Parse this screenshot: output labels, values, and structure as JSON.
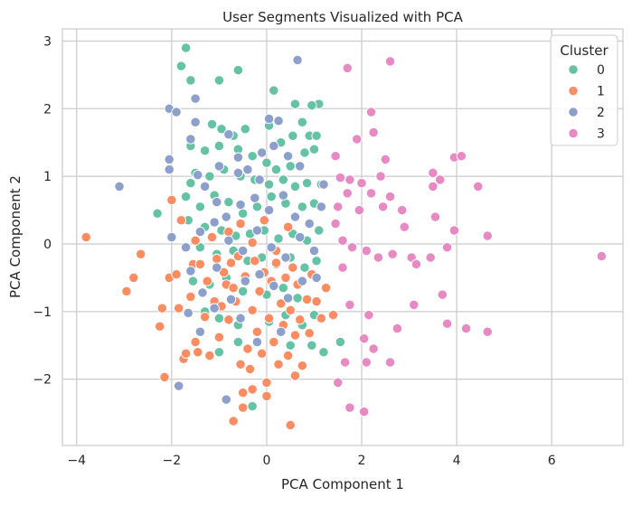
{
  "chart_data": {
    "type": "scatter",
    "title": "User Segments Visualized with PCA",
    "xlabel": "PCA Component 1",
    "ylabel": "PCA Component 2",
    "xlim": [
      -4.3,
      7.5
    ],
    "ylim": [
      -2.98,
      3.18
    ],
    "xticks": [
      -4,
      -2,
      0,
      2,
      4,
      6
    ],
    "yticks": [
      -2,
      -1,
      0,
      1,
      2,
      3
    ],
    "grid": true,
    "legend": {
      "title": "Cluster",
      "placement": "top-right"
    },
    "series": [
      {
        "name": "0",
        "color": "#66c2a5",
        "points": [
          [
            -1.7,
            2.9
          ],
          [
            -1.8,
            2.63
          ],
          [
            -1.6,
            2.42
          ],
          [
            -1.0,
            2.42
          ],
          [
            -0.6,
            2.57
          ],
          [
            0.15,
            2.27
          ],
          [
            0.6,
            2.07
          ],
          [
            1.1,
            2.07
          ],
          [
            0.95,
            2.05
          ],
          [
            -1.15,
            1.77
          ],
          [
            -0.95,
            1.7
          ],
          [
            -0.7,
            1.6
          ],
          [
            -0.45,
            1.7
          ],
          [
            0.05,
            1.75
          ],
          [
            0.3,
            1.5
          ],
          [
            0.55,
            1.6
          ],
          [
            0.75,
            1.8
          ],
          [
            0.9,
            1.6
          ],
          [
            1.05,
            1.6
          ],
          [
            -1.6,
            1.45
          ],
          [
            -1.3,
            1.38
          ],
          [
            -1.0,
            1.45
          ],
          [
            -0.6,
            1.4
          ],
          [
            -0.3,
            1.3
          ],
          [
            0.0,
            1.2
          ],
          [
            0.2,
            1.1
          ],
          [
            0.5,
            1.15
          ],
          [
            0.8,
            1.35
          ],
          [
            1.0,
            1.4
          ],
          [
            -1.5,
            1.05
          ],
          [
            -1.2,
            1.0
          ],
          [
            -0.9,
            1.1
          ],
          [
            -0.55,
            1.0
          ],
          [
            -0.25,
            0.95
          ],
          [
            0.05,
            0.88
          ],
          [
            0.35,
            0.95
          ],
          [
            0.6,
            0.85
          ],
          [
            0.85,
            0.9
          ],
          [
            1.15,
            0.88
          ],
          [
            -2.3,
            0.45
          ],
          [
            -1.6,
            0.9
          ],
          [
            -1.7,
            0.7
          ],
          [
            -1.4,
            0.55
          ],
          [
            -1.1,
            0.72
          ],
          [
            -0.8,
            0.62
          ],
          [
            -0.5,
            0.45
          ],
          [
            -0.2,
            0.55
          ],
          [
            0.1,
            0.7
          ],
          [
            0.4,
            0.6
          ],
          [
            0.75,
            0.55
          ],
          [
            1.0,
            0.6
          ],
          [
            -1.65,
            0.35
          ],
          [
            -1.3,
            0.25
          ],
          [
            -0.95,
            0.2
          ],
          [
            -0.65,
            0.12
          ],
          [
            -0.35,
            0.15
          ],
          [
            -0.05,
            0.2
          ],
          [
            0.25,
            0.08
          ],
          [
            0.55,
            0.15
          ],
          [
            0.85,
            0.05
          ],
          [
            1.1,
            0.2
          ],
          [
            -1.4,
            -0.05
          ],
          [
            -1.05,
            -0.15
          ],
          [
            -0.7,
            -0.1
          ],
          [
            -0.4,
            -0.25
          ],
          [
            -0.1,
            -0.2
          ],
          [
            0.2,
            -0.3
          ],
          [
            0.5,
            -0.2
          ],
          [
            0.8,
            -0.35
          ],
          [
            1.05,
            -0.25
          ],
          [
            -1.55,
            -0.55
          ],
          [
            -1.2,
            -0.6
          ],
          [
            -0.85,
            -0.5
          ],
          [
            -0.5,
            -0.7
          ],
          [
            0.0,
            -0.75
          ],
          [
            0.35,
            -0.65
          ],
          [
            0.65,
            -0.8
          ],
          [
            -1.3,
            -1.0
          ],
          [
            -1.0,
            -1.1
          ],
          [
            -0.6,
            -1.2
          ],
          [
            0.05,
            -1.15
          ],
          [
            0.4,
            -1.05
          ],
          [
            0.75,
            -1.2
          ],
          [
            1.0,
            -1.05
          ],
          [
            -1.0,
            -1.6
          ],
          [
            -0.6,
            -1.45
          ],
          [
            0.5,
            -1.5
          ],
          [
            0.95,
            -1.5
          ],
          [
            1.2,
            -1.6
          ],
          [
            1.55,
            -1.45
          ],
          [
            -0.85,
            -2.3
          ],
          [
            -0.3,
            -2.4
          ]
        ]
      },
      {
        "name": "1",
        "color": "#fc8d62",
        "points": [
          [
            -3.8,
            0.1
          ],
          [
            -2.95,
            -0.7
          ],
          [
            -2.8,
            -0.5
          ],
          [
            -2.65,
            -0.15
          ],
          [
            -2.25,
            -1.22
          ],
          [
            -2.2,
            -0.95
          ],
          [
            -2.15,
            -1.97
          ],
          [
            -2.05,
            -0.5
          ],
          [
            -2.0,
            0.65
          ],
          [
            -1.9,
            -0.45
          ],
          [
            -1.85,
            -0.95
          ],
          [
            -1.75,
            -1.7
          ],
          [
            -1.7,
            -1.62
          ],
          [
            -1.6,
            -0.78
          ],
          [
            -1.55,
            -0.3
          ],
          [
            -1.5,
            -1.45
          ],
          [
            -1.45,
            -1.6
          ],
          [
            -1.4,
            -0.3
          ],
          [
            -1.3,
            -1.08
          ],
          [
            -1.25,
            -0.55
          ],
          [
            -1.2,
            -1.65
          ],
          [
            -1.1,
            -0.85
          ],
          [
            -1.05,
            -0.22
          ],
          [
            -1.0,
            -1.38
          ],
          [
            -0.95,
            -0.92
          ],
          [
            -0.9,
            -0.42
          ],
          [
            -0.85,
            -0.6
          ],
          [
            -0.8,
            -1.12
          ],
          [
            -0.75,
            -0.28
          ],
          [
            -0.7,
            -0.65
          ],
          [
            -0.65,
            -0.85
          ],
          [
            -0.6,
            -0.18
          ],
          [
            -0.55,
            -1.78
          ],
          [
            -0.5,
            -2.2
          ],
          [
            -0.45,
            -0.48
          ],
          [
            -0.4,
            -1.55
          ],
          [
            -0.35,
            -1.85
          ],
          [
            -0.3,
            -0.98
          ],
          [
            -0.25,
            -0.25
          ],
          [
            -0.2,
            -1.3
          ],
          [
            -0.15,
            -0.7
          ],
          [
            -0.1,
            -1.62
          ],
          [
            -0.05,
            -0.42
          ],
          [
            0.0,
            -2.05
          ],
          [
            0.05,
            -1.1
          ],
          [
            0.1,
            -0.55
          ],
          [
            0.15,
            -1.45
          ],
          [
            0.2,
            -0.28
          ],
          [
            0.25,
            -1.78
          ],
          [
            0.3,
            -0.88
          ],
          [
            0.35,
            -1.2
          ],
          [
            0.4,
            -0.5
          ],
          [
            0.45,
            -1.65
          ],
          [
            0.5,
            -0.98
          ],
          [
            0.55,
            -0.35
          ],
          [
            0.6,
            -1.35
          ],
          [
            0.65,
            -0.6
          ],
          [
            0.7,
            -1.12
          ],
          [
            0.75,
            -1.8
          ],
          [
            0.85,
            -0.82
          ],
          [
            0.9,
            -1.32
          ],
          [
            0.95,
            -0.45
          ],
          [
            1.05,
            -0.85
          ],
          [
            1.15,
            -1.1
          ],
          [
            1.25,
            -0.65
          ],
          [
            1.4,
            -1.05
          ],
          [
            -1.8,
            0.35
          ],
          [
            -1.5,
            0.05
          ],
          [
            -1.15,
            0.1
          ],
          [
            -0.8,
            0.18
          ],
          [
            -0.55,
            0.3
          ],
          [
            -0.3,
            0.02
          ],
          [
            -0.05,
            0.35
          ],
          [
            0.2,
            -0.1
          ],
          [
            0.45,
            0.25
          ],
          [
            -0.7,
            -2.62
          ],
          [
            -0.5,
            -2.42
          ],
          [
            0.0,
            -2.25
          ],
          [
            0.5,
            -2.68
          ],
          [
            0.6,
            -1.95
          ],
          [
            -0.3,
            -2.15
          ]
        ]
      },
      {
        "name": "2",
        "color": "#8da0cb",
        "points": [
          [
            -3.1,
            0.85
          ],
          [
            -2.05,
            2.0
          ],
          [
            -1.9,
            1.95
          ],
          [
            -1.5,
            2.15
          ],
          [
            -1.5,
            1.8
          ],
          [
            -1.6,
            1.55
          ],
          [
            -2.05,
            1.25
          ],
          [
            -2.05,
            1.1
          ],
          [
            -1.45,
            1.02
          ],
          [
            -1.0,
            1.15
          ],
          [
            -0.8,
            1.62
          ],
          [
            -0.6,
            1.28
          ],
          [
            -0.4,
            1.1
          ],
          [
            -0.1,
            1.35
          ],
          [
            0.15,
            1.45
          ],
          [
            0.45,
            1.3
          ],
          [
            0.65,
            2.72
          ],
          [
            0.7,
            1.15
          ],
          [
            -1.3,
            0.85
          ],
          [
            -1.05,
            0.62
          ],
          [
            -0.85,
            0.4
          ],
          [
            -0.55,
            0.58
          ],
          [
            -0.25,
            0.68
          ],
          [
            0.05,
            0.5
          ],
          [
            0.35,
            0.72
          ],
          [
            0.6,
            0.4
          ],
          [
            0.9,
            0.3
          ],
          [
            1.15,
            0.55
          ],
          [
            1.2,
            0.88
          ],
          [
            -2.0,
            0.1
          ],
          [
            -1.7,
            -0.05
          ],
          [
            -1.4,
            0.18
          ],
          [
            -1.1,
            0.32
          ],
          [
            -0.8,
            0.05
          ],
          [
            -0.5,
            -0.1
          ],
          [
            -0.2,
            0.2
          ],
          [
            0.1,
            -0.05
          ],
          [
            0.4,
            -0.2
          ],
          [
            0.7,
            0.1
          ],
          [
            1.0,
            -0.1
          ],
          [
            -1.6,
            -0.4
          ],
          [
            -1.35,
            -0.72
          ],
          [
            -1.05,
            -0.35
          ],
          [
            -0.75,
            -0.82
          ],
          [
            -0.45,
            -0.55
          ],
          [
            -0.15,
            -0.45
          ],
          [
            0.15,
            -0.62
          ],
          [
            0.45,
            -0.8
          ],
          [
            0.75,
            -0.55
          ],
          [
            1.05,
            -0.5
          ],
          [
            -1.65,
            -1.02
          ],
          [
            -1.4,
            -1.3
          ],
          [
            -1.1,
            -0.95
          ],
          [
            -0.55,
            -1.1
          ],
          [
            -0.85,
            -2.3
          ],
          [
            -1.85,
            -2.1
          ],
          [
            0.3,
            -1.3
          ],
          [
            -0.2,
            -1.45
          ],
          [
            0.25,
            1.82
          ],
          [
            0.05,
            1.85
          ],
          [
            -0.6,
            1.05
          ],
          [
            -0.15,
            0.95
          ]
        ]
      },
      {
        "name": "3",
        "color": "#e78ac3",
        "points": [
          [
            1.7,
            2.6
          ],
          [
            2.6,
            2.7
          ],
          [
            2.2,
            1.95
          ],
          [
            2.25,
            1.65
          ],
          [
            1.9,
            1.55
          ],
          [
            2.5,
            1.25
          ],
          [
            1.45,
            1.3
          ],
          [
            1.55,
            0.98
          ],
          [
            1.75,
            0.95
          ],
          [
            2.0,
            0.9
          ],
          [
            2.4,
            1.0
          ],
          [
            1.7,
            0.75
          ],
          [
            1.95,
            0.5
          ],
          [
            2.2,
            0.75
          ],
          [
            2.45,
            0.55
          ],
          [
            2.6,
            0.7
          ],
          [
            2.85,
            0.5
          ],
          [
            2.9,
            0.25
          ],
          [
            1.5,
            0.55
          ],
          [
            1.45,
            0.3
          ],
          [
            1.6,
            0.05
          ],
          [
            1.8,
            -0.05
          ],
          [
            2.1,
            -0.1
          ],
          [
            2.35,
            -0.2
          ],
          [
            2.65,
            -0.15
          ],
          [
            3.05,
            -0.2
          ],
          [
            3.45,
            -0.2
          ],
          [
            3.8,
            -0.05
          ],
          [
            3.55,
            0.4
          ],
          [
            3.95,
            0.2
          ],
          [
            4.65,
            0.12
          ],
          [
            7.05,
            -0.18
          ],
          [
            3.5,
            1.05
          ],
          [
            3.65,
            0.95
          ],
          [
            3.5,
            0.85
          ],
          [
            3.95,
            1.28
          ],
          [
            4.1,
            1.3
          ],
          [
            4.45,
            0.85
          ],
          [
            1.6,
            -0.35
          ],
          [
            1.75,
            -0.9
          ],
          [
            2.15,
            -1.05
          ],
          [
            2.75,
            -1.25
          ],
          [
            3.15,
            -0.3
          ],
          [
            3.7,
            -0.75
          ],
          [
            3.8,
            -1.18
          ],
          [
            4.2,
            -1.25
          ],
          [
            4.65,
            -1.3
          ],
          [
            2.05,
            -1.4
          ],
          [
            2.25,
            -1.55
          ],
          [
            2.1,
            -1.75
          ],
          [
            2.6,
            -1.75
          ],
          [
            1.65,
            -1.75
          ],
          [
            1.5,
            -2.05
          ],
          [
            1.75,
            -2.42
          ],
          [
            2.05,
            -2.48
          ],
          [
            3.1,
            -0.9
          ]
        ]
      }
    ]
  }
}
